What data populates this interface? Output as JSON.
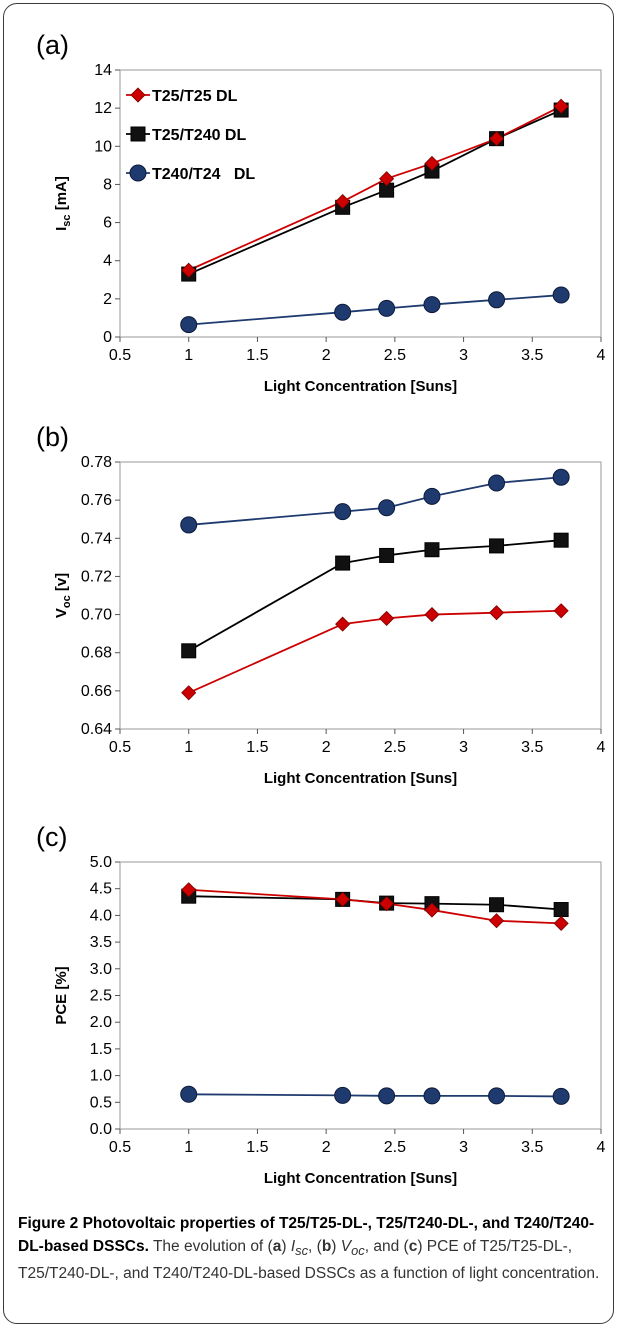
{
  "chart_data": [
    {
      "panel_label": "(a)",
      "type": "line",
      "xlabel": "Light Concentration [Suns]",
      "ylabel": "I",
      "ylabel_sub": "sc",
      "ylabel_suffix": " [mA]",
      "xlim": [
        0.5,
        4
      ],
      "ylim": [
        0,
        14
      ],
      "xticks": [
        "0.5",
        "1",
        "1.5",
        "2",
        "2.5",
        "3",
        "3.5",
        "4"
      ],
      "xtick_values": [
        0.5,
        1,
        1.5,
        2,
        2.5,
        3,
        3.5,
        4
      ],
      "yticks": [
        "0",
        "2",
        "4",
        "6",
        "8",
        "10",
        "12",
        "14"
      ],
      "ytick_values": [
        0,
        2,
        4,
        6,
        8,
        10,
        12,
        14
      ],
      "legend": "top-left",
      "grid": false,
      "x": [
        1,
        2.12,
        2.44,
        2.77,
        3.24,
        3.71
      ],
      "series": [
        {
          "name": "T25/T25 DL",
          "color": "#cc0000",
          "marker": "diamond",
          "values": [
            3.5,
            7.1,
            8.3,
            9.1,
            10.4,
            12.1
          ]
        },
        {
          "name": "T25/T240 DL",
          "color": "#000000",
          "marker": "square",
          "values": [
            3.3,
            6.8,
            7.7,
            8.7,
            10.4,
            11.9
          ]
        },
        {
          "name": "T240/T24   DL",
          "color": "#1f3a6e",
          "marker": "circle",
          "values": [
            0.65,
            1.3,
            1.5,
            1.7,
            1.95,
            2.2
          ]
        }
      ]
    },
    {
      "panel_label": "(b)",
      "type": "line",
      "xlabel": "Light Concentration [Suns]",
      "ylabel": "V",
      "ylabel_sub": "oc",
      "ylabel_suffix": " [v]",
      "xlim": [
        0.5,
        4
      ],
      "ylim": [
        0.64,
        0.78
      ],
      "xticks": [
        "0.5",
        "1",
        "1.5",
        "2",
        "2.5",
        "3",
        "3.5",
        "4"
      ],
      "xtick_values": [
        0.5,
        1,
        1.5,
        2,
        2.5,
        3,
        3.5,
        4
      ],
      "yticks": [
        "0.64",
        "0.66",
        "0.68",
        "0.70",
        "0.72",
        "0.74",
        "0.76",
        "0.78"
      ],
      "ytick_values": [
        0.64,
        0.66,
        0.68,
        0.7,
        0.72,
        0.74,
        0.76,
        0.78
      ],
      "grid": false,
      "x": [
        1,
        2.12,
        2.44,
        2.77,
        3.24,
        3.71
      ],
      "series": [
        {
          "color": "#cc0000",
          "marker": "diamond",
          "values": [
            0.659,
            0.695,
            0.698,
            0.7,
            0.701,
            0.702
          ]
        },
        {
          "color": "#000000",
          "marker": "square",
          "values": [
            0.681,
            0.727,
            0.731,
            0.734,
            0.736,
            0.739
          ]
        },
        {
          "color": "#1f3a6e",
          "marker": "circle",
          "values": [
            0.747,
            0.754,
            0.756,
            0.762,
            0.769,
            0.772
          ]
        }
      ]
    },
    {
      "panel_label": "(c)",
      "type": "line",
      "xlabel": "Light Concentration [Suns]",
      "ylabel": "PCE",
      "ylabel_sub": "",
      "ylabel_suffix": " [%]",
      "xlim": [
        0.5,
        4
      ],
      "ylim": [
        0,
        5
      ],
      "xticks": [
        "0.5",
        "1",
        "1.5",
        "2",
        "2.5",
        "3",
        "3.5",
        "4"
      ],
      "xtick_values": [
        0.5,
        1,
        1.5,
        2,
        2.5,
        3,
        3.5,
        4
      ],
      "yticks": [
        "0.0",
        "0.5",
        "1.0",
        "1.5",
        "2.0",
        "2.5",
        "3.0",
        "3.5",
        "4.0",
        "4.5",
        "5.0"
      ],
      "ytick_values": [
        0,
        0.5,
        1,
        1.5,
        2,
        2.5,
        3,
        3.5,
        4,
        4.5,
        5
      ],
      "grid": false,
      "x": [
        1,
        2.12,
        2.44,
        2.77,
        3.24,
        3.71
      ],
      "series": [
        {
          "color": "#cc0000",
          "marker": "diamond",
          "values": [
            4.48,
            4.3,
            4.22,
            4.1,
            3.9,
            3.85
          ]
        },
        {
          "color": "#000000",
          "marker": "square",
          "values": [
            4.36,
            4.3,
            4.23,
            4.22,
            4.2,
            4.11
          ]
        },
        {
          "color": "#1f3a6e",
          "marker": "circle",
          "values": [
            0.65,
            0.63,
            0.62,
            0.62,
            0.62,
            0.61
          ]
        }
      ]
    }
  ],
  "caption": {
    "title": "Figure 2 Photovoltaic properties of T25/T25-DL-, T25/T240-DL-, and T240/T240-DL-based DSSCs.",
    "body_1": " The evolution of (",
    "a": "a",
    "body_2": ") ",
    "isc_main": "I",
    "isc_sub": "sc",
    "body_3": ", (",
    "b": "b",
    "body_4": ") ",
    "voc_main": "V",
    "voc_sub": "oc",
    "body_5": ", and (",
    "c": "c",
    "body_6": ") PCE of T25/T25-DL-, T25/T240-DL-, and T240/T240-DL-based DSSCs as a function of light concentration."
  }
}
